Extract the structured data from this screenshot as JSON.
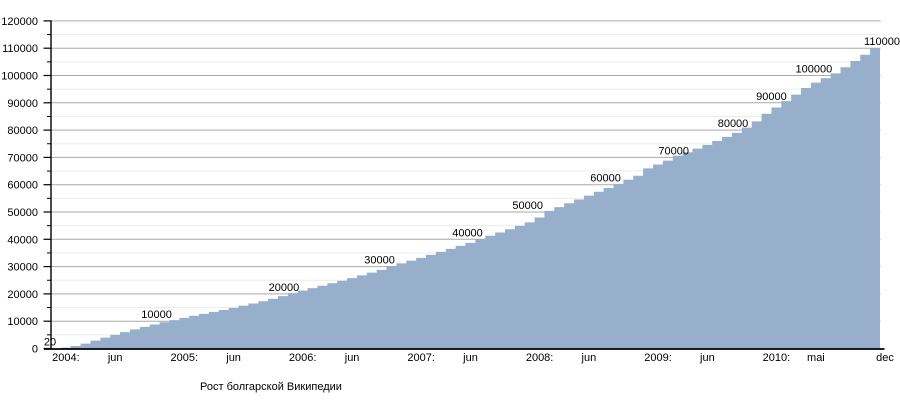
{
  "caption": "Рост болгарской Википедии",
  "chart_data": {
    "type": "area",
    "title": "",
    "xlabel": "",
    "ylabel": "",
    "caption": "Рост болгарской Википедии",
    "ylim": [
      0,
      120000
    ],
    "y_tick_step": 10000,
    "y_minor_tick_step": 5000,
    "grid": "horizontal-major-and-minor",
    "legend": "none",
    "area_color": "#97AFCB",
    "major_grid_color": "#aaaaaa",
    "minor_grid_color": "#ececec",
    "axis_color": "#000000",
    "text_color": "#000000",
    "start_month": "2004-01",
    "end_month": "2010-12",
    "values": [
      20,
      300,
      900,
      1800,
      2900,
      4000,
      5000,
      6000,
      7000,
      7900,
      8800,
      9600,
      10400,
      11200,
      12000,
      12700,
      13400,
      14100,
      14900,
      15700,
      16500,
      17300,
      18200,
      19200,
      20300,
      21200,
      22100,
      23000,
      23900,
      24800,
      25800,
      26800,
      27800,
      28800,
      30200,
      31200,
      32200,
      33200,
      34300,
      35400,
      36500,
      37600,
      38700,
      40100,
      41300,
      42500,
      43700,
      44900,
      46200,
      48000,
      50400,
      51800,
      53200,
      54600,
      56000,
      57400,
      58800,
      60300,
      61800,
      63300,
      66000,
      67400,
      68800,
      70600,
      71900,
      73200,
      74600,
      76000,
      77500,
      79000,
      80900,
      83200,
      86000,
      88300,
      90600,
      93000,
      95400,
      97400,
      99000,
      100800,
      103000,
      105300,
      107600,
      110000
    ],
    "y_tick_labels": [
      "0",
      "10000",
      "20000",
      "30000",
      "40000",
      "50000",
      "60000",
      "70000",
      "80000",
      "90000",
      "100000",
      "110000",
      "120000"
    ],
    "x_ticks": [
      {
        "label": "2004:",
        "month": 0
      },
      {
        "label": "jun",
        "month": 5
      },
      {
        "label": "2005:",
        "month": 12
      },
      {
        "label": "jun",
        "month": 17
      },
      {
        "label": "2006:",
        "month": 24
      },
      {
        "label": "jun",
        "month": 29
      },
      {
        "label": "2007:",
        "month": 36
      },
      {
        "label": "jun",
        "month": 41
      },
      {
        "label": "2008:",
        "month": 48
      },
      {
        "label": "jun",
        "month": 53
      },
      {
        "label": "2009:",
        "month": 60
      },
      {
        "label": "jun",
        "month": 65
      },
      {
        "label": "2010:",
        "month": 72
      },
      {
        "label": "mai",
        "month": 76
      },
      {
        "label": "dec",
        "month": 83
      }
    ],
    "milestone_labels": [
      {
        "label": "20",
        "value": 20,
        "at_month": -0.1
      },
      {
        "label": "10000",
        "value": 10000,
        "at_month": 10.7
      },
      {
        "label": "20000",
        "value": 20000,
        "at_month": 23.6
      },
      {
        "label": "30000",
        "value": 30000,
        "at_month": 33.3
      },
      {
        "label": "40000",
        "value": 40000,
        "at_month": 42.2
      },
      {
        "label": "50000",
        "value": 50000,
        "at_month": 48.3
      },
      {
        "label": "60000",
        "value": 60000,
        "at_month": 56.2
      },
      {
        "label": "70000",
        "value": 70000,
        "at_month": 63.1
      },
      {
        "label": "80000",
        "value": 80000,
        "at_month": 69.1
      },
      {
        "label": "90000",
        "value": 90000,
        "at_month": 73.0
      },
      {
        "label": "100000",
        "value": 100000,
        "at_month": 77.3
      },
      {
        "label": "110000",
        "value": 110000,
        "at_month": 84.2
      }
    ]
  }
}
